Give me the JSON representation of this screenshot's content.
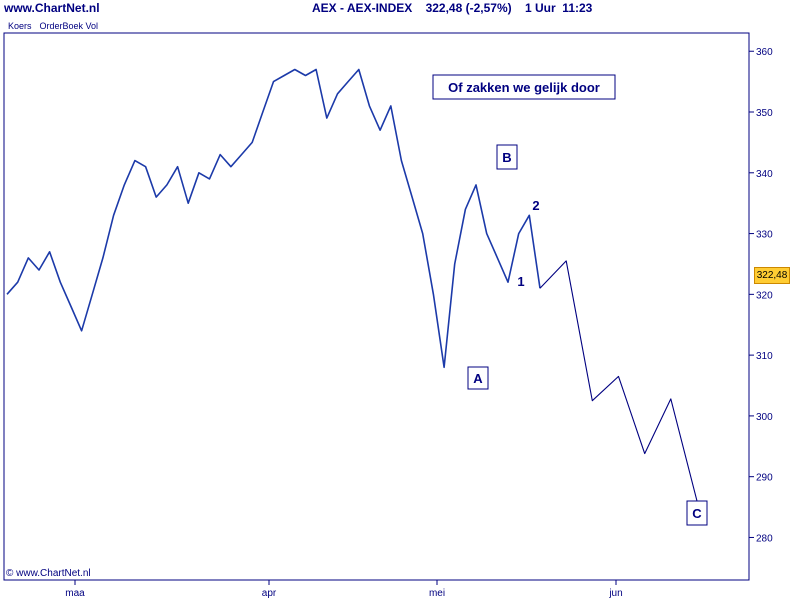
{
  "header": {
    "site": "www.ChartNet.nl",
    "title": "AEX - AEX-INDEX    322,48 (-2,57%)    1 Uur  11:23"
  },
  "tabs": [
    "Koers",
    "OrderBoek Vol"
  ],
  "copyright": "© www.ChartNet.nl",
  "last_price_label": "322,48",
  "chart_data": {
    "type": "line",
    "title": "AEX - AEX-INDEX",
    "ylim": [
      273,
      363
    ],
    "yticks": [
      280,
      290,
      300,
      310,
      320,
      330,
      340,
      350,
      360
    ],
    "xlabels": [
      "maa",
      "apr",
      "mei",
      "jun"
    ],
    "series": [
      {
        "values": [
          320,
          322,
          326,
          324,
          327,
          322,
          318,
          314,
          320,
          326,
          333,
          338,
          342,
          341,
          336,
          338,
          341,
          335,
          340,
          339,
          343,
          341,
          343,
          345,
          350,
          355,
          356,
          357,
          356,
          357,
          349,
          353,
          355,
          357,
          351,
          347,
          351,
          342,
          336,
          330,
          320,
          308,
          325,
          334,
          338,
          330,
          326,
          322,
          330,
          333,
          321
        ]
      },
      {
        "values": [
          321,
          325.5,
          302.5,
          306.5,
          293.8,
          302.8,
          286
        ]
      }
    ],
    "annotations": [
      {
        "text": "Of zakken we gelijk door",
        "boxed": true
      },
      {
        "text": "A",
        "boxed": true
      },
      {
        "text": "B",
        "boxed": true
      },
      {
        "text": "C",
        "boxed": true
      },
      {
        "text": "1",
        "boxed": false
      },
      {
        "text": "2",
        "boxed": false
      }
    ],
    "last_price": 322.48
  }
}
